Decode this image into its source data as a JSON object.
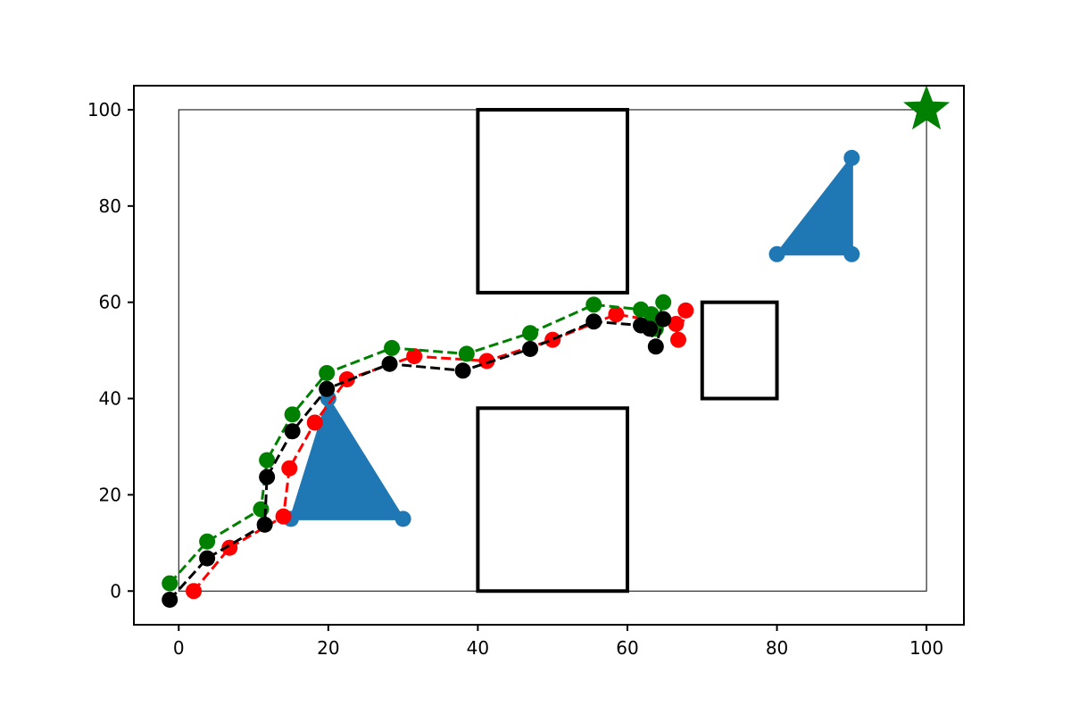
{
  "chart_data": {
    "type": "scatter",
    "title": "",
    "xlabel": "",
    "ylabel": "",
    "xlim": [
      -6,
      105
    ],
    "ylim": [
      -7,
      105
    ],
    "x_ticks": [
      0,
      20,
      40,
      60,
      80,
      100
    ],
    "y_ticks": [
      0,
      20,
      40,
      60,
      80,
      100
    ],
    "grid": false,
    "legend": "none",
    "boundary": {
      "x": [
        0,
        100
      ],
      "y": [
        0,
        100
      ]
    },
    "rect_obstacles": [
      {
        "x0": 40,
        "y0": 62,
        "x1": 60,
        "y1": 100
      },
      {
        "x0": 40,
        "y0": 0,
        "x1": 60,
        "y1": 38
      },
      {
        "x0": 70,
        "y0": 40,
        "x1": 80,
        "y1": 60
      }
    ],
    "triangles": [
      {
        "vertices": [
          [
            15,
            15
          ],
          [
            30,
            15
          ],
          [
            20,
            40
          ]
        ],
        "color": "#1f77b4"
      },
      {
        "vertices": [
          [
            80,
            70
          ],
          [
            90,
            70
          ],
          [
            90,
            90
          ]
        ],
        "color": "#1f77b4"
      }
    ],
    "goal": {
      "x": 100,
      "y": 100,
      "marker": "star",
      "color": "#008000"
    },
    "series": [
      {
        "color": "#ff0000",
        "x": [
          2,
          6.8,
          14,
          14.8,
          18.2,
          22.5,
          31.5,
          41.2,
          50,
          58.5,
          66.5,
          66.8,
          67.8
        ],
        "y": [
          0,
          9,
          15.5,
          25.5,
          35,
          44,
          48.8,
          47.8,
          52.2,
          57.5,
          55.5,
          52.2,
          58.3
        ]
      },
      {
        "color": "#008000",
        "x": [
          -1.2,
          3.8,
          11,
          11.8,
          15.2,
          19.8,
          28.5,
          38.5,
          47,
          55.5,
          61.8,
          63.2,
          63.8,
          64.8
        ],
        "y": [
          1.6,
          10.3,
          17,
          27.2,
          36.7,
          45.3,
          50.5,
          49.3,
          53.6,
          59.5,
          58.5,
          57.5,
          54.5,
          60
        ]
      },
      {
        "color": "#000000",
        "x": [
          -1.2,
          3.8,
          11.5,
          11.8,
          15.2,
          19.8,
          28.2,
          38,
          47,
          55.5,
          61.8,
          63,
          63.8,
          64.8
        ],
        "y": [
          -1.8,
          6.8,
          13.8,
          23.7,
          33.2,
          42,
          47.2,
          45.8,
          50.3,
          56,
          55.2,
          54.5,
          50.8,
          56.5
        ]
      }
    ]
  }
}
